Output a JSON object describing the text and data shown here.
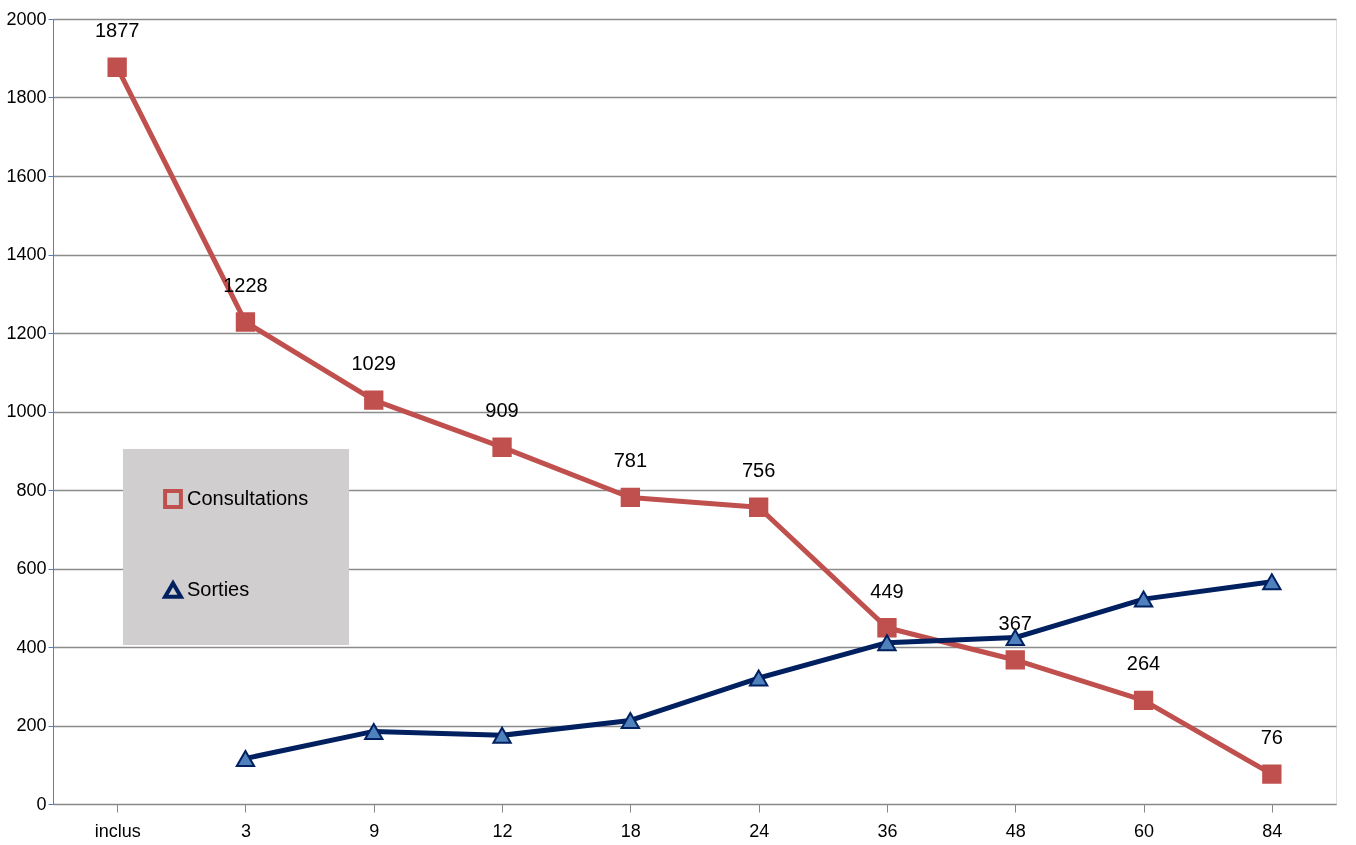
{
  "chart_data": {
    "type": "line",
    "categories": [
      "inclus",
      "3",
      "9",
      "12",
      "18",
      "24",
      "36",
      "48",
      "60",
      "84"
    ],
    "series": [
      {
        "name": "Consultations",
        "color": "#c0504d",
        "marker": "square",
        "values": [
          1877,
          1228,
          1029,
          909,
          781,
          756,
          449,
          367,
          264,
          76
        ],
        "value_labels": [
          "1877",
          "1228",
          "1029",
          "909",
          "781",
          "756",
          "449",
          "367",
          "264",
          "76"
        ]
      },
      {
        "name": "Sorties",
        "color": "#002060",
        "marker": "triangle",
        "values": [
          null,
          116,
          185,
          175,
          213,
          321,
          411,
          424,
          522,
          566
        ]
      }
    ],
    "ylim": [
      0,
      2000
    ],
    "yticks": [
      0,
      200,
      400,
      600,
      800,
      1000,
      1200,
      1400,
      1600,
      1800,
      2000
    ],
    "grid": "y",
    "legend": "left"
  }
}
